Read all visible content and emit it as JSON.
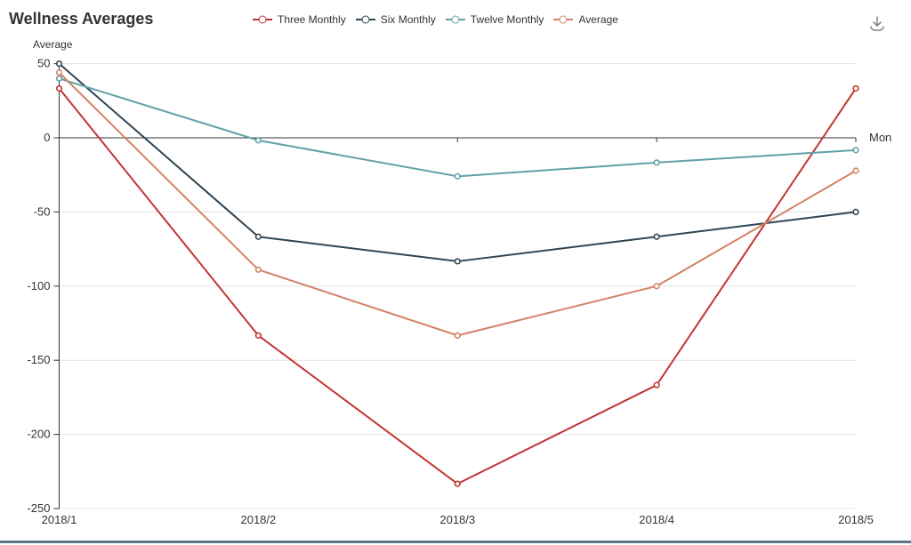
{
  "header": {
    "title": "Wellness Averages"
  },
  "toolbox": {
    "icon": "download-icon",
    "color": "#8a8a8a"
  },
  "footer_bar": {
    "color": "#5b7589"
  },
  "chart_data": {
    "type": "line",
    "title": "Wellness Averages",
    "xlabel": "Mon",
    "ylabel": "Average",
    "x": [
      "2018/1",
      "2018/2",
      "2018/3",
      "2018/4",
      "2018/5"
    ],
    "ytick_labels": [
      "50",
      "0",
      "-50",
      "-100",
      "-150",
      "-200",
      "-250"
    ],
    "yticks": [
      50,
      0,
      -50,
      -100,
      -150,
      -200,
      -250
    ],
    "ylim": [
      -250,
      50
    ],
    "grid": true,
    "legend_position": "top",
    "series": [
      {
        "name": "Three Monthly",
        "color": "#c23531",
        "values": [
          33.3,
          -133.3,
          -233.3,
          -166.7,
          33.3
        ]
      },
      {
        "name": "Six Monthly",
        "color": "#2f4554",
        "values": [
          50.0,
          -66.7,
          -83.3,
          -66.7,
          -50.0
        ]
      },
      {
        "name": "Twelve Monthly",
        "color": "#61a0a8",
        "values": [
          40.0,
          -1.7,
          -26.0,
          -16.7,
          -8.3
        ]
      },
      {
        "name": "Average",
        "color": "#d48265",
        "values": [
          44.0,
          -88.9,
          -133.3,
          -100.0,
          -22.2
        ]
      }
    ],
    "axis_color": "#333333",
    "grid_color": "#e3e3e3"
  }
}
